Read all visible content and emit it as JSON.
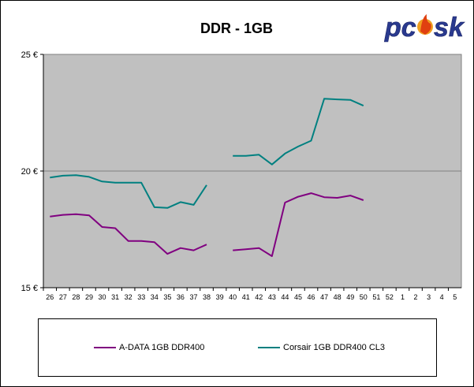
{
  "chart_data": {
    "type": "line",
    "title": "DDR - 1GB",
    "logo_text": "pcosk",
    "xlabel": "",
    "ylabel": "",
    "ylim": [
      15,
      25
    ],
    "y_ticks": [
      "15 €",
      "20 €",
      "25 €"
    ],
    "y_tick_values": [
      15,
      20,
      25
    ],
    "categories": [
      "26",
      "27",
      "28",
      "29",
      "30",
      "31",
      "32",
      "33",
      "34",
      "35",
      "36",
      "37",
      "38",
      "39",
      "40",
      "41",
      "42",
      "43",
      "44",
      "45",
      "46",
      "47",
      "48",
      "49",
      "50",
      "51",
      "52",
      "1",
      "2",
      "3",
      "4",
      "5"
    ],
    "series": [
      {
        "name": "A-DATA 1GB DDR400",
        "color": "#800080",
        "values": [
          18.05,
          18.12,
          18.15,
          18.1,
          17.6,
          17.55,
          17.0,
          17.0,
          16.95,
          16.45,
          16.7,
          16.6,
          16.85,
          null,
          16.6,
          16.65,
          16.7,
          16.35,
          18.65,
          18.9,
          19.05,
          18.88,
          18.85,
          18.95,
          18.75,
          null,
          null,
          null,
          null,
          null,
          null,
          null
        ]
      },
      {
        "name": "Corsair 1GB DDR400 CL3",
        "color": "#008080",
        "values": [
          19.72,
          19.8,
          19.82,
          19.75,
          19.55,
          19.5,
          19.5,
          19.5,
          18.45,
          18.42,
          18.67,
          18.55,
          19.4,
          null,
          20.65,
          20.65,
          20.7,
          20.28,
          20.75,
          21.05,
          21.3,
          23.1,
          23.07,
          23.05,
          22.8,
          null,
          null,
          null,
          null,
          null,
          null,
          null
        ]
      }
    ],
    "grid": "horizontal",
    "plot_background": "#c0c0c0",
    "gridline_color": "#808080",
    "legend_position": "bottom"
  }
}
